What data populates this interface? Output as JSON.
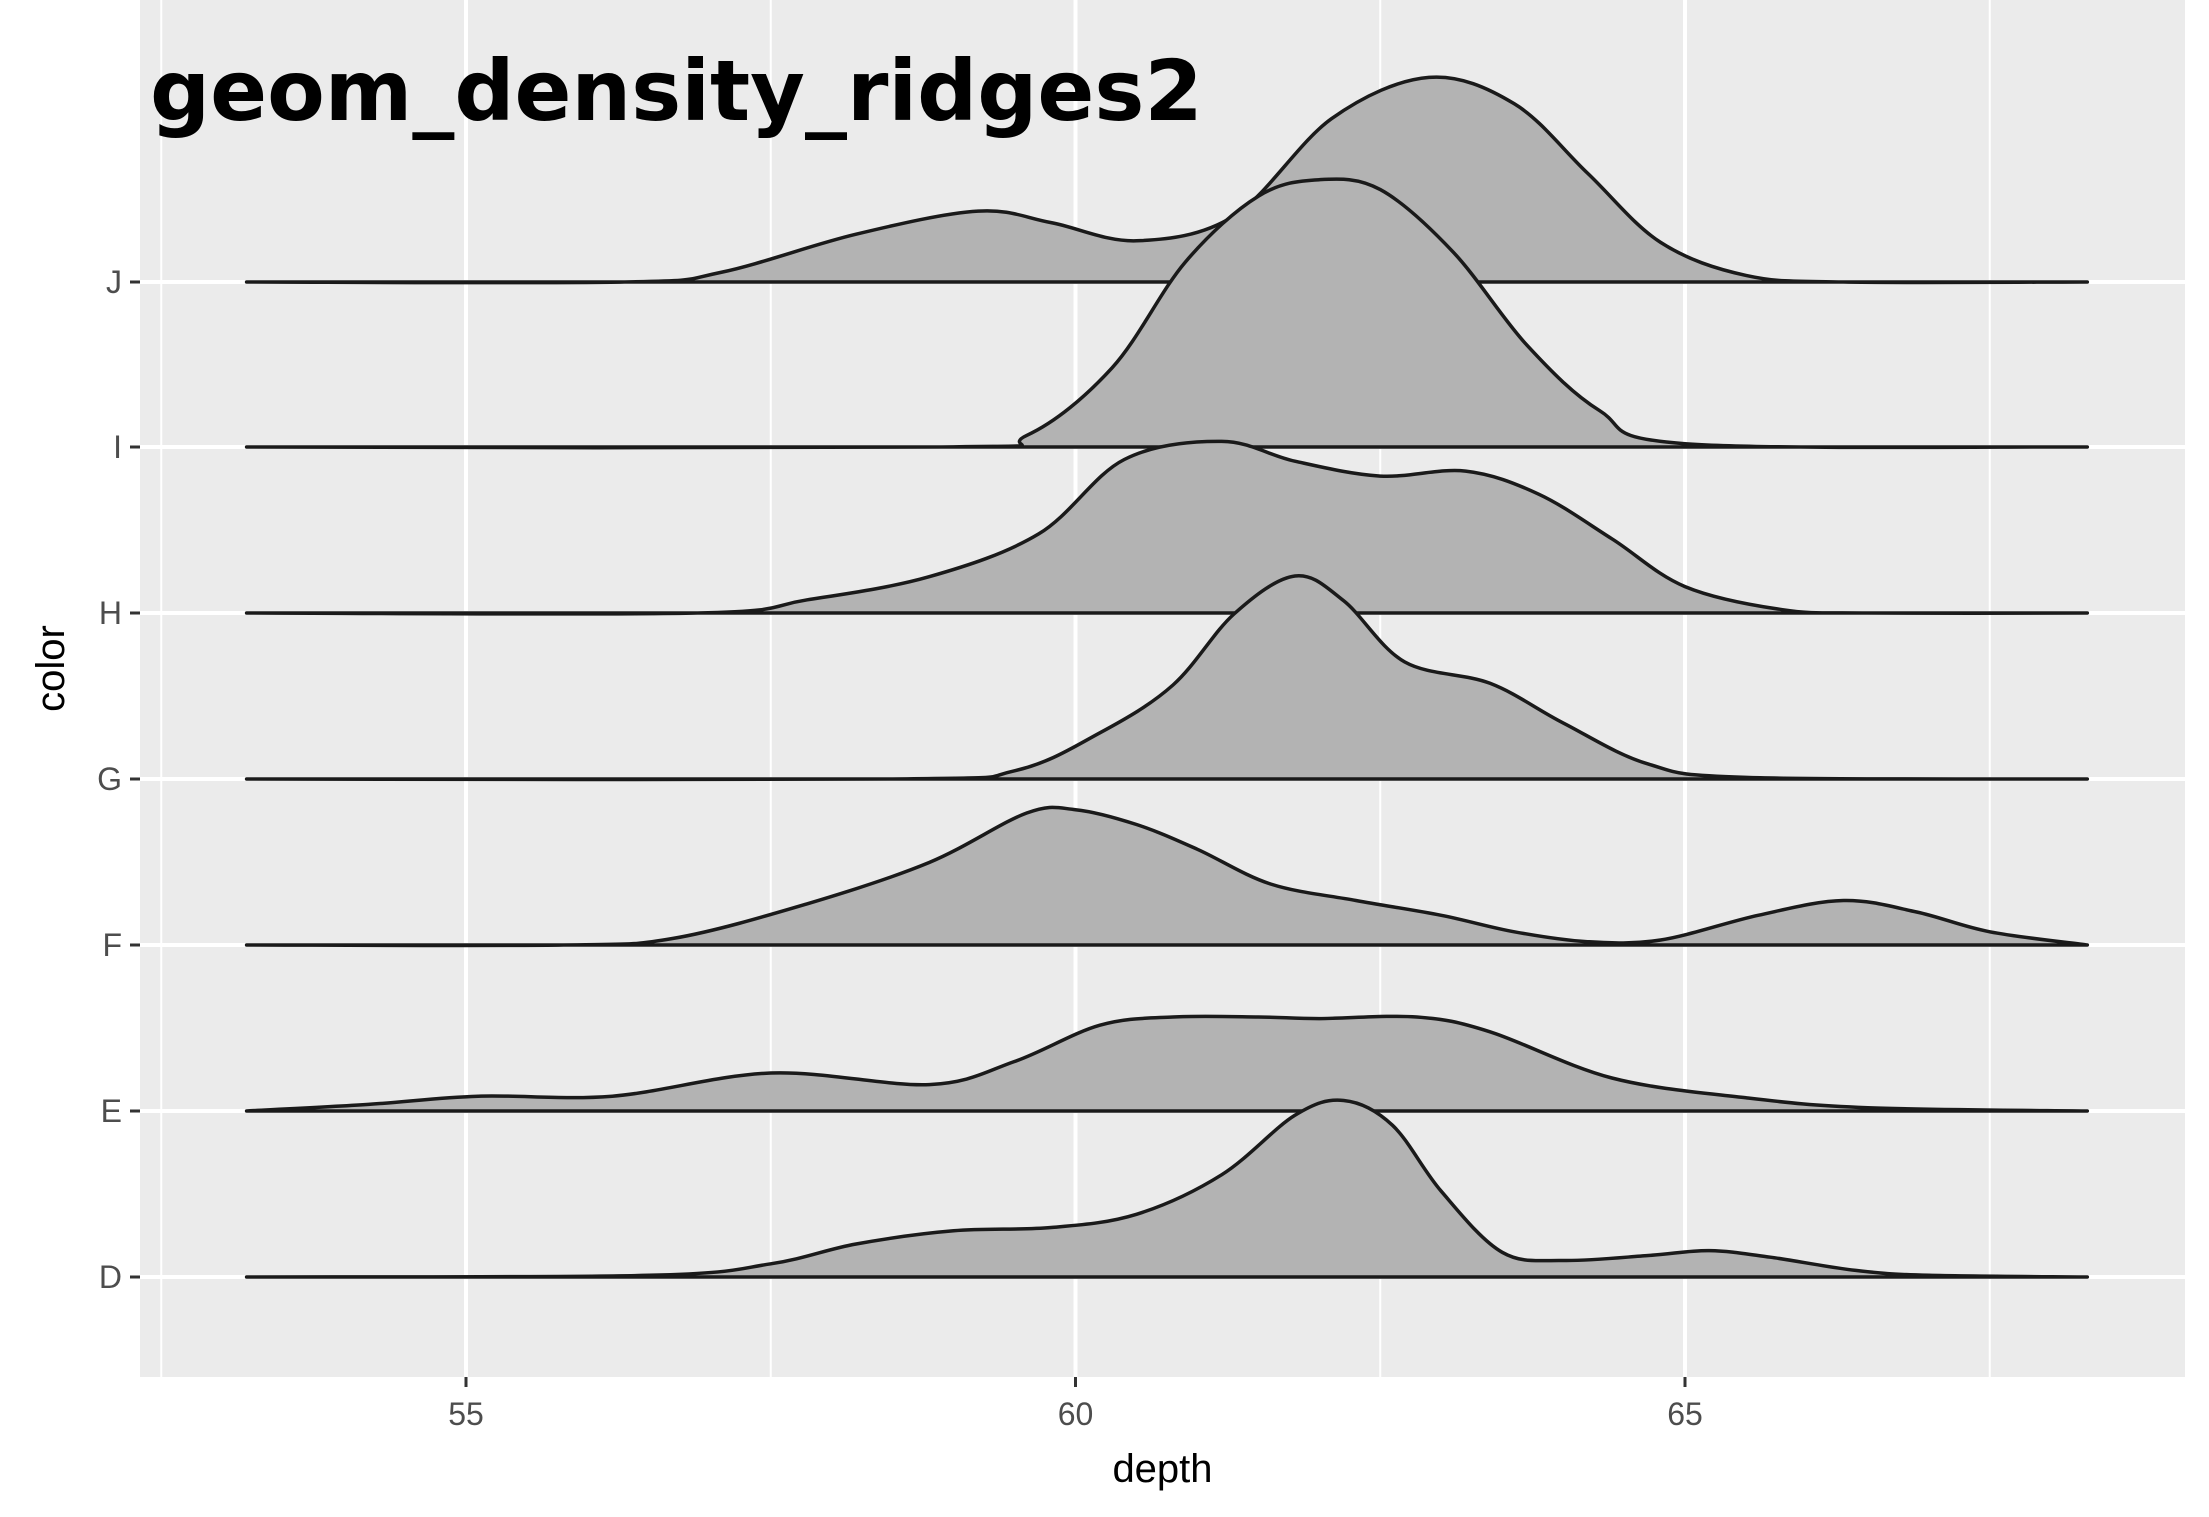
{
  "chart_data": {
    "type": "ridgeline",
    "title": "geom_density_ridges2",
    "xlabel": "depth",
    "ylabel": "color",
    "xlim": [
      52.6,
      68.4
    ],
    "x_ticks": [
      55,
      60,
      65
    ],
    "x_tick_labels": [
      "55",
      "60",
      "65"
    ],
    "categories": [
      "D",
      "E",
      "F",
      "G",
      "H",
      "I",
      "J"
    ],
    "grid": true,
    "fill_color": "#b3b3b3",
    "line_color": "#1a1a1a",
    "panel_background": "#ebebeb",
    "grid_color": "#ffffff",
    "series": [
      {
        "name": "D",
        "points": [
          [
            53.2,
            0
          ],
          [
            56.5,
            0.01
          ],
          [
            57.5,
            0.08
          ],
          [
            58.2,
            0.2
          ],
          [
            59,
            0.28
          ],
          [
            59.8,
            0.3
          ],
          [
            60.5,
            0.38
          ],
          [
            61.2,
            0.62
          ],
          [
            61.8,
            0.98
          ],
          [
            62.2,
            1.07
          ],
          [
            62.6,
            0.92
          ],
          [
            63,
            0.52
          ],
          [
            63.5,
            0.15
          ],
          [
            64,
            0.1
          ],
          [
            64.7,
            0.13
          ],
          [
            65.2,
            0.16
          ],
          [
            65.7,
            0.12
          ],
          [
            66.4,
            0.04
          ],
          [
            67,
            0.01
          ],
          [
            68.3,
            0
          ]
        ]
      },
      {
        "name": "E",
        "points": [
          [
            53.2,
            0
          ],
          [
            54.2,
            0.04
          ],
          [
            55.1,
            0.09
          ],
          [
            56.2,
            0.09
          ],
          [
            57.5,
            0.23
          ],
          [
            58.8,
            0.16
          ],
          [
            59.5,
            0.3
          ],
          [
            60.2,
            0.52
          ],
          [
            60.8,
            0.57
          ],
          [
            61.5,
            0.57
          ],
          [
            62,
            0.56
          ],
          [
            62.8,
            0.57
          ],
          [
            63.4,
            0.48
          ],
          [
            64.4,
            0.2
          ],
          [
            65.5,
            0.08
          ],
          [
            66.5,
            0.02
          ],
          [
            68.3,
            0
          ]
        ]
      },
      {
        "name": "F",
        "points": [
          [
            53.2,
            0
          ],
          [
            55.8,
            0
          ],
          [
            56.7,
            0.04
          ],
          [
            57.8,
            0.25
          ],
          [
            58.8,
            0.5
          ],
          [
            59.6,
            0.8
          ],
          [
            60,
            0.82
          ],
          [
            60.5,
            0.73
          ],
          [
            61,
            0.58
          ],
          [
            61.6,
            0.37
          ],
          [
            62.3,
            0.27
          ],
          [
            63,
            0.18
          ],
          [
            63.6,
            0.08
          ],
          [
            64.2,
            0.02
          ],
          [
            64.8,
            0.03
          ],
          [
            65.6,
            0.18
          ],
          [
            66.3,
            0.27
          ],
          [
            66.9,
            0.2
          ],
          [
            67.5,
            0.08
          ],
          [
            68.3,
            0
          ]
        ]
      },
      {
        "name": "G",
        "points": [
          [
            53.2,
            0
          ],
          [
            58.5,
            0
          ],
          [
            59.5,
            0.05
          ],
          [
            60.2,
            0.28
          ],
          [
            60.8,
            0.57
          ],
          [
            61.3,
            1.0
          ],
          [
            61.8,
            1.23
          ],
          [
            62.2,
            1.08
          ],
          [
            62.7,
            0.71
          ],
          [
            63.4,
            0.58
          ],
          [
            64,
            0.34
          ],
          [
            64.7,
            0.09
          ],
          [
            65.5,
            0.01
          ],
          [
            68.3,
            0
          ]
        ]
      },
      {
        "name": "H",
        "points": [
          [
            53.2,
            0
          ],
          [
            56.9,
            0
          ],
          [
            57.8,
            0.08
          ],
          [
            58.8,
            0.22
          ],
          [
            59.7,
            0.48
          ],
          [
            60.4,
            0.93
          ],
          [
            61.2,
            1.04
          ],
          [
            61.8,
            0.92
          ],
          [
            62.5,
            0.83
          ],
          [
            63.2,
            0.86
          ],
          [
            63.8,
            0.72
          ],
          [
            64.4,
            0.45
          ],
          [
            65,
            0.16
          ],
          [
            65.8,
            0.02
          ],
          [
            66.5,
            0
          ],
          [
            68.3,
            0
          ]
        ]
      },
      {
        "name": "I",
        "points": [
          [
            53.2,
            0
          ],
          [
            58.9,
            0
          ],
          [
            59.6,
            0.07
          ],
          [
            60.3,
            0.48
          ],
          [
            60.9,
            1.12
          ],
          [
            61.5,
            1.52
          ],
          [
            62,
            1.62
          ],
          [
            62.5,
            1.56
          ],
          [
            63.1,
            1.18
          ],
          [
            63.7,
            0.62
          ],
          [
            64.3,
            0.22
          ],
          [
            65,
            0.02
          ],
          [
            68.3,
            0
          ]
        ]
      },
      {
        "name": "J",
        "points": [
          [
            53.2,
            0
          ],
          [
            56.3,
            0
          ],
          [
            57.1,
            0.06
          ],
          [
            58.2,
            0.29
          ],
          [
            59.2,
            0.43
          ],
          [
            59.8,
            0.36
          ],
          [
            60.5,
            0.25
          ],
          [
            61.3,
            0.4
          ],
          [
            62.1,
            0.99
          ],
          [
            62.9,
            1.24
          ],
          [
            63.6,
            1.08
          ],
          [
            64.2,
            0.66
          ],
          [
            64.8,
            0.24
          ],
          [
            65.5,
            0.04
          ],
          [
            66.3,
            0
          ],
          [
            68.3,
            0
          ]
        ]
      }
    ]
  }
}
